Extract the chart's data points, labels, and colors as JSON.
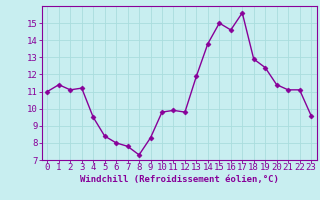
{
  "x": [
    0,
    1,
    2,
    3,
    4,
    5,
    6,
    7,
    8,
    9,
    10,
    11,
    12,
    13,
    14,
    15,
    16,
    17,
    18,
    19,
    20,
    21,
    22,
    23
  ],
  "y": [
    11.0,
    11.4,
    11.1,
    11.2,
    9.5,
    8.4,
    8.0,
    7.8,
    7.3,
    8.3,
    9.8,
    9.9,
    9.8,
    11.9,
    13.8,
    15.0,
    14.6,
    15.6,
    12.9,
    12.4,
    11.4,
    11.1,
    11.1,
    9.6
  ],
  "line_color": "#880099",
  "marker": "D",
  "marker_size": 2.5,
  "xlabel": "Windchill (Refroidissement éolien,°C)",
  "xlim": [
    -0.5,
    23.5
  ],
  "ylim": [
    7,
    16
  ],
  "yticks": [
    7,
    8,
    9,
    10,
    11,
    12,
    13,
    14,
    15
  ],
  "xticks": [
    0,
    1,
    2,
    3,
    4,
    5,
    6,
    7,
    8,
    9,
    10,
    11,
    12,
    13,
    14,
    15,
    16,
    17,
    18,
    19,
    20,
    21,
    22,
    23
  ],
  "bg_color": "#c8eef0",
  "grid_color": "#aadddd",
  "tick_color": "#880099",
  "label_color": "#880099",
  "font_size_xlabel": 6.5,
  "font_size_ticks": 6.5,
  "linewidth": 1.0
}
